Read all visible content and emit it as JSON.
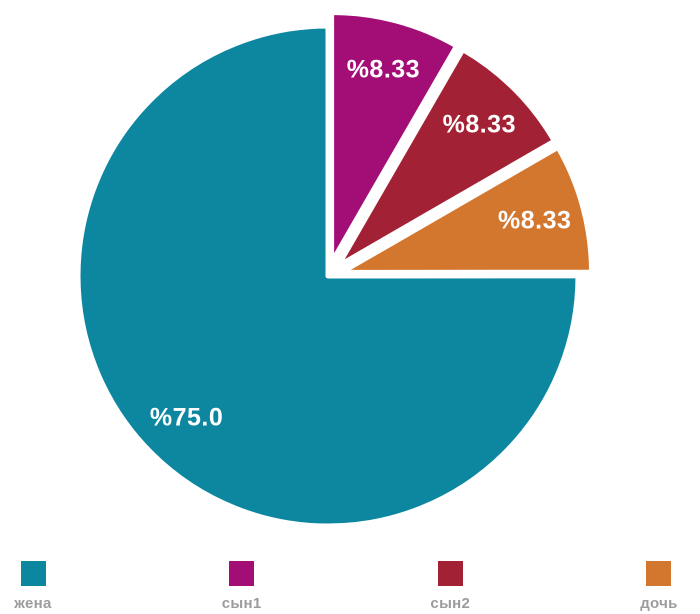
{
  "page": {
    "background_color": "#ffffff"
  },
  "chart_data": {
    "type": "pie",
    "title": "",
    "start_angle_deg": 90,
    "direction": "clockwise",
    "slice_separator_color": "#ffffff",
    "slice_label_color": "#ffffff",
    "percent_prefix": "%",
    "slices_clockwise_from_top": [
      {
        "label": "сын1",
        "value": 8.33,
        "display_label": "%8.33",
        "color": "#a30d76",
        "explode": 0.056
      },
      {
        "label": "сын2",
        "value": 8.33,
        "display_label": "%8.33",
        "color": "#a32134",
        "explode": 0.056
      },
      {
        "label": "дочь",
        "value": 8.33,
        "display_label": "%8.33",
        "color": "#d3762e",
        "explode": 0.056
      },
      {
        "label": "жена",
        "value": 75.0,
        "display_label": "%75.0",
        "color": "#0d87a0",
        "explode": 0
      }
    ],
    "legend": {
      "position": "bottom",
      "label_color": "#9c9c9c",
      "items": [
        {
          "label": "жена",
          "color": "#0d87a0"
        },
        {
          "label": "сын1",
          "color": "#a30d76"
        },
        {
          "label": "сын2",
          "color": "#a32134"
        },
        {
          "label": "дочь",
          "color": "#d3762e"
        }
      ]
    }
  }
}
